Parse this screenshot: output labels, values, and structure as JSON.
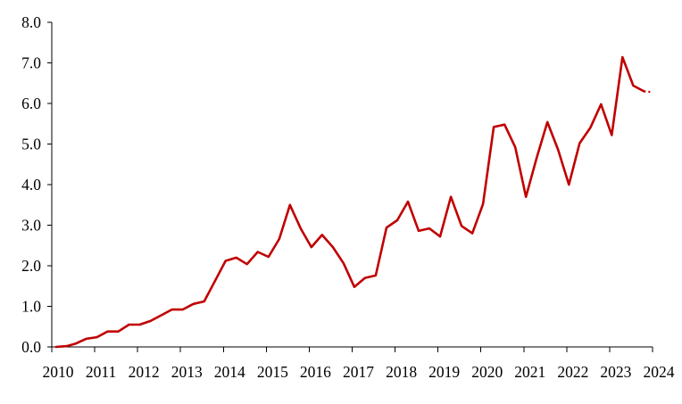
{
  "chart_data": {
    "type": "line",
    "title": "",
    "xlabel": "",
    "ylabel": "",
    "xlim": [
      2010,
      2024
    ],
    "ylim": [
      0,
      8
    ],
    "yticks": [
      "0.0",
      "1.0",
      "2.0",
      "3.0",
      "4.0",
      "5.0",
      "6.0",
      "7.0",
      "8.0"
    ],
    "xticks": [
      "2010",
      "2011",
      "2012",
      "2013",
      "2014",
      "2015",
      "2016",
      "2017",
      "2018",
      "2019",
      "2020",
      "2021",
      "2022",
      "2023",
      "2024"
    ],
    "grid": false,
    "legend": "none",
    "line_color": "#c00000",
    "series": [
      {
        "x": [
          2010.1,
          2010.35,
          2010.55,
          2010.8,
          2011.05,
          2011.3,
          2011.55,
          2011.8,
          2012.05,
          2012.3,
          2012.55,
          2012.8,
          2013.05,
          2013.3,
          2013.55,
          2013.8,
          2014.05,
          2014.3,
          2014.55,
          2014.8,
          2015.05,
          2015.3,
          2015.55,
          2015.8,
          2016.05,
          2016.3,
          2016.55,
          2016.8,
          2017.05,
          2017.3,
          2017.55,
          2017.8,
          2018.05,
          2018.3,
          2018.55,
          2018.8,
          2019.05,
          2019.3,
          2019.55,
          2019.8,
          2020.05,
          2020.3,
          2020.55,
          2020.8,
          2021.05,
          2021.3,
          2021.55,
          2021.8,
          2022.05,
          2022.3,
          2022.55,
          2022.8,
          2023.05,
          2023.3,
          2023.55,
          2023.8
        ],
        "values": [
          0.0,
          0.02,
          0.08,
          0.2,
          0.24,
          0.38,
          0.38,
          0.55,
          0.55,
          0.64,
          0.78,
          0.92,
          0.92,
          1.06,
          1.12,
          1.62,
          2.12,
          2.2,
          2.04,
          2.34,
          2.22,
          2.66,
          3.5,
          2.92,
          2.46,
          2.76,
          2.46,
          2.06,
          1.48,
          1.7,
          1.76,
          2.94,
          3.12,
          3.58,
          2.86,
          2.92,
          2.72,
          3.7,
          2.98,
          2.8,
          3.52,
          5.42,
          5.48,
          4.92,
          3.7,
          4.66,
          5.54,
          4.86,
          4.0,
          5.02,
          5.4,
          5.98,
          5.22,
          7.14,
          6.44,
          6.3
        ]
      },
      {
        "style": "dotted",
        "x": [
          2023.8,
          2024.0
        ],
        "values": [
          6.3,
          6.28
        ]
      }
    ]
  }
}
